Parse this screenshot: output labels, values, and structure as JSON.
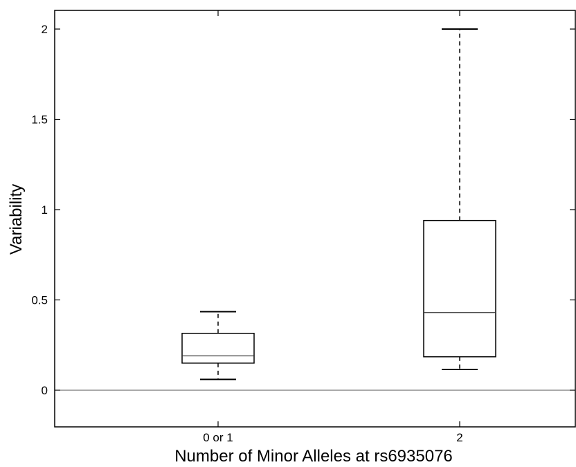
{
  "chart_data": {
    "type": "box",
    "xlabel": "Number of Minor Alleles at rs6935076",
    "ylabel": "Variability",
    "ylim": [
      -0.2,
      2.1
    ],
    "yticks": [
      0,
      0.5,
      1,
      1.5,
      2
    ],
    "ytick_labels": [
      "0",
      "0.5",
      "1",
      "1.5",
      "2"
    ],
    "categories": [
      "0 or 1",
      "2"
    ],
    "boxes": [
      {
        "category": "0 or 1",
        "whisker_low": 0.06,
        "q1": 0.15,
        "median": 0.19,
        "q3": 0.315,
        "whisker_high": 0.435
      },
      {
        "category": "2",
        "whisker_low": 0.115,
        "q1": 0.185,
        "median": 0.43,
        "q3": 0.94,
        "whisker_high": 2.0
      }
    ],
    "reference_line": 0,
    "grid": false,
    "colors": {
      "stroke": "#000000",
      "median": "#333333",
      "background": "#ffffff"
    }
  }
}
